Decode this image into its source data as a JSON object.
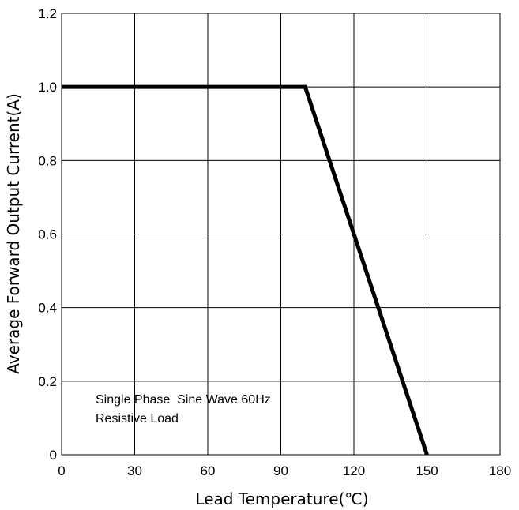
{
  "chart_data": {
    "type": "line",
    "title": "",
    "xlabel": "Lead Temperature(℃)",
    "ylabel": "Average Forward Output Current(A)",
    "xlim": [
      0,
      180
    ],
    "ylim": [
      0,
      1.2
    ],
    "xticks": [
      0,
      30,
      60,
      90,
      120,
      150,
      180
    ],
    "yticks": [
      0,
      0.2,
      0.4,
      0.6,
      0.8,
      1.0,
      1.2
    ],
    "xtick_labels": [
      "0",
      "30",
      "60",
      "90",
      "120",
      "150",
      "180"
    ],
    "ytick_labels": [
      "0",
      "0.2",
      "0.4",
      "0.6",
      "0.8",
      "1.0",
      "1.2"
    ],
    "grid": true,
    "series": [
      {
        "x": [
          0,
          100,
          150
        ],
        "y": [
          1.0,
          1.0,
          0
        ],
        "color": "#000000"
      }
    ],
    "annotations": [
      "Single Phase  Sine Wave 60Hz",
      "Resistive Load"
    ]
  }
}
